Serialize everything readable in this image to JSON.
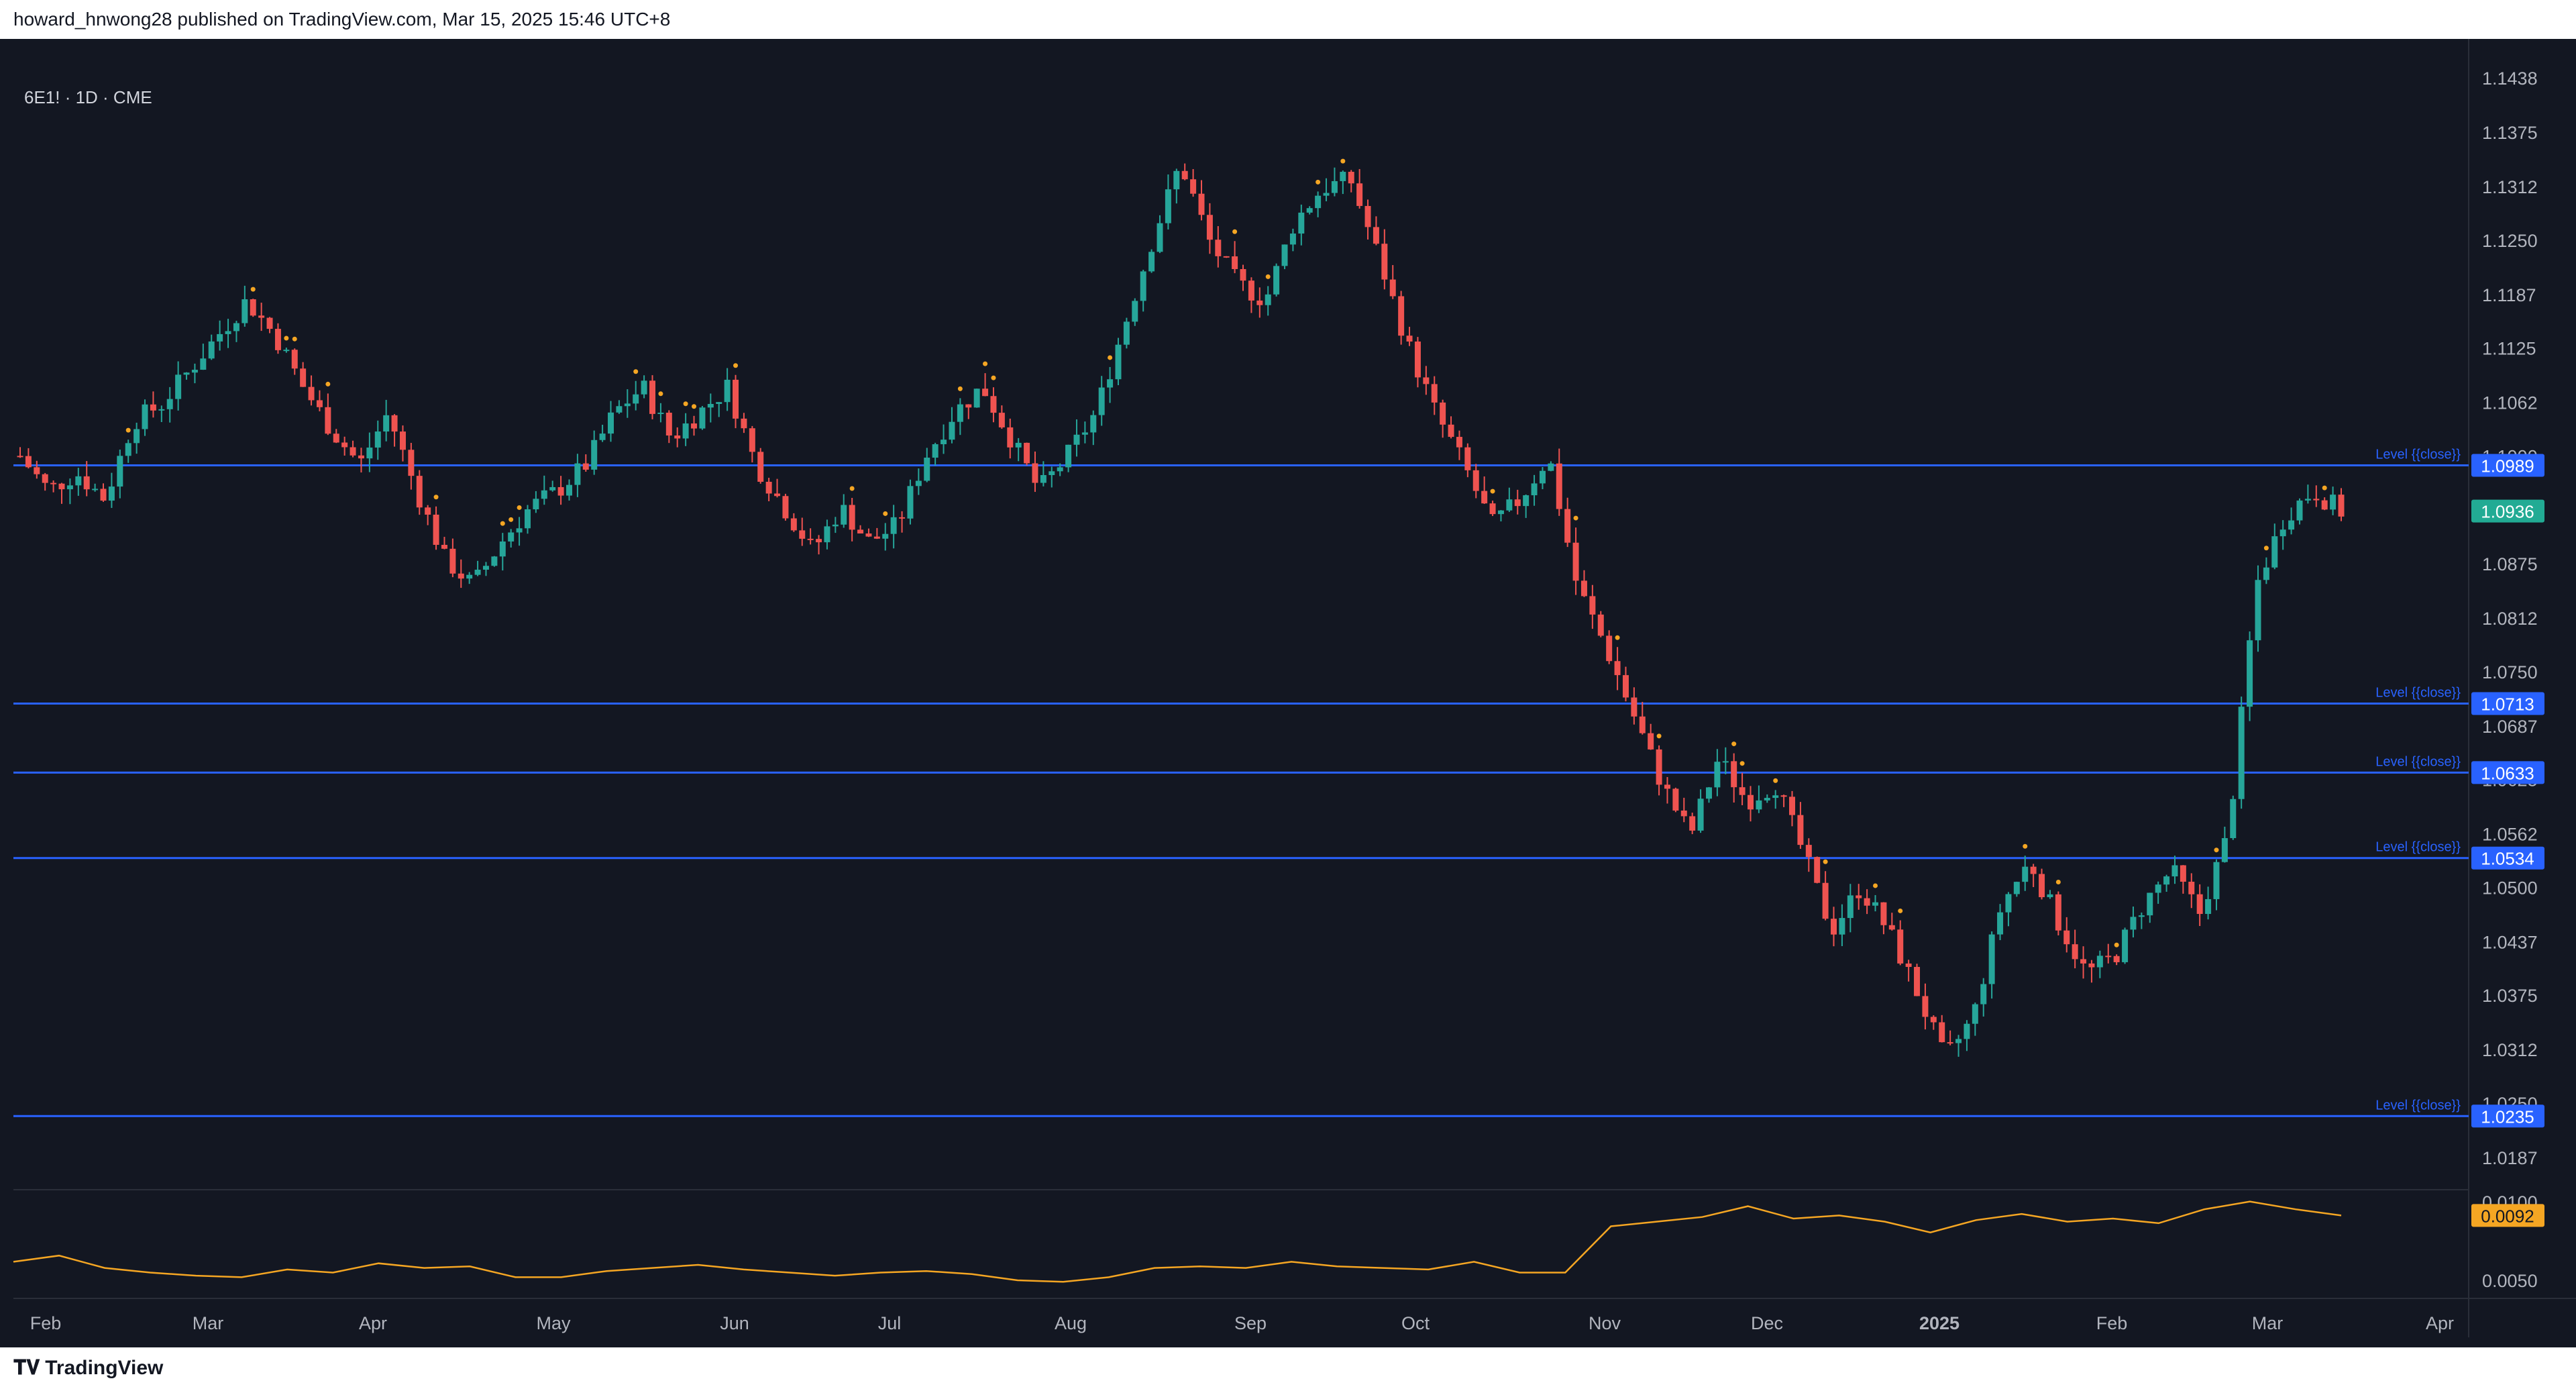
{
  "header": {
    "text": "howard_hnwong28 published on TradingView.com, Mar 15, 2025 15:46 UTC+8"
  },
  "symbol": {
    "text": "6E1! · 1D · CME"
  },
  "footer": {
    "brand": "TradingView"
  },
  "colors": {
    "background": "#131722",
    "up": "#26a69a",
    "down": "#ef5350",
    "level_line": "#2962ff",
    "indicator": "#f5a623",
    "price_tag": "#22ab94"
  },
  "chart_data": [
    {
      "type": "candlestick",
      "ylim": [
        1.0187,
        1.1438
      ],
      "x_ticks": [
        "Feb",
        "Mar",
        "Apr",
        "May",
        "Jun",
        "Jul",
        "Aug",
        "Sep",
        "Oct",
        "Nov",
        "Dec",
        "2025",
        "Feb",
        "Mar",
        "Apr"
      ],
      "y_ticks": [
        1.1438,
        1.1375,
        1.1312,
        1.125,
        1.1187,
        1.1125,
        1.1062,
        1.0875,
        1.0812,
        1.075,
        1.0687,
        1.0562,
        1.05,
        1.0437,
        1.0375,
        1.0312,
        1.0187
      ],
      "y_ticks_partially_hidden": [
        "1.1000",
        "1.0625",
        "1.0250"
      ],
      "current_price": 1.0936,
      "levels": [
        {
          "value": 1.0989,
          "label": "Level {{close}}"
        },
        {
          "value": 1.0713,
          "label": "Level {{close}}"
        },
        {
          "value": 1.0633,
          "label": "Level {{close}}"
        },
        {
          "value": 1.0534,
          "label": "Level {{close}}"
        },
        {
          "value": 1.0235,
          "label": "Level {{close}}"
        }
      ],
      "close_path": [
        1.1,
        1.096,
        1.098,
        1.095,
        1.104,
        1.106,
        1.11,
        1.114,
        1.118,
        1.114,
        1.108,
        1.103,
        1.099,
        1.105,
        1.096,
        1.088,
        1.085,
        1.09,
        1.094,
        1.096,
        1.099,
        1.105,
        1.108,
        1.102,
        1.105,
        1.108,
        1.099,
        1.094,
        1.089,
        1.094,
        1.09,
        1.092,
        1.1,
        1.105,
        1.108,
        1.102,
        1.096,
        1.1,
        1.105,
        1.115,
        1.125,
        1.134,
        1.125,
        1.12,
        1.118,
        1.127,
        1.131,
        1.132,
        1.123,
        1.113,
        1.105,
        1.099,
        1.092,
        1.095,
        1.1,
        1.085,
        1.078,
        1.07,
        1.062,
        1.056,
        1.065,
        1.06,
        1.062,
        1.054,
        1.045,
        1.05,
        1.045,
        1.038,
        1.03,
        1.035,
        1.048,
        1.053,
        1.046,
        1.04,
        1.042,
        1.048,
        1.052,
        1.047,
        1.056,
        1.085,
        1.093,
        1.096,
        1.0936
      ]
    },
    {
      "type": "line",
      "series": [
        {
          "name": "",
          "last_value": 0.0092
        }
      ],
      "y_ticks": [
        0.005
      ],
      "y_ticks_partially_hidden": [
        "0.0100"
      ],
      "values": [
        0.0062,
        0.0066,
        0.0058,
        0.0055,
        0.0053,
        0.0052,
        0.0057,
        0.0055,
        0.0061,
        0.0058,
        0.0059,
        0.0052,
        0.0052,
        0.0056,
        0.0058,
        0.006,
        0.0057,
        0.0055,
        0.0053,
        0.0055,
        0.0056,
        0.0054,
        0.005,
        0.0049,
        0.0052,
        0.0058,
        0.0059,
        0.0058,
        0.0062,
        0.0059,
        0.0058,
        0.0057,
        0.0062,
        0.0055,
        0.0055,
        0.0085,
        0.0088,
        0.0091,
        0.0098,
        0.009,
        0.0092,
        0.0088,
        0.0081,
        0.0089,
        0.0093,
        0.0088,
        0.009,
        0.0087,
        0.0096,
        0.0101,
        0.0096,
        0.0092
      ]
    }
  ]
}
